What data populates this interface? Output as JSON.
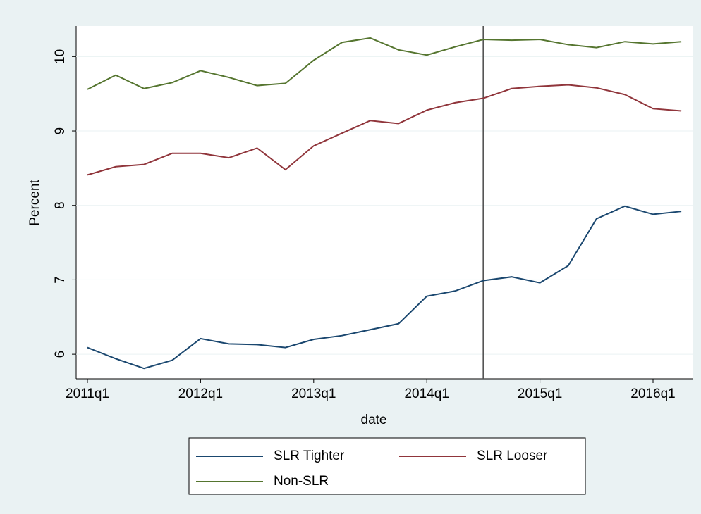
{
  "chart_data": {
    "type": "line",
    "x_label": "date",
    "y_label": "Percent",
    "categories": [
      "2011q1",
      null,
      null,
      null,
      "2012q1",
      null,
      null,
      null,
      "2013q1",
      null,
      null,
      null,
      "2014q1",
      null,
      null,
      null,
      "2015q1",
      null,
      null,
      null,
      "2016q1",
      null
    ],
    "series": [
      {
        "name": "SLR Tighter",
        "color": "#1a476f",
        "values": [
          6.09,
          5.94,
          5.81,
          5.92,
          6.21,
          6.14,
          6.13,
          6.09,
          6.2,
          6.25,
          6.33,
          6.41,
          6.78,
          6.85,
          6.99,
          7.04,
          6.96,
          7.19,
          7.82,
          7.99,
          7.88,
          7.92
        ]
      },
      {
        "name": "SLR Looser",
        "color": "#90353b",
        "values": [
          8.41,
          8.52,
          8.55,
          8.7,
          8.7,
          8.64,
          8.77,
          8.48,
          8.8,
          8.97,
          9.14,
          9.1,
          9.28,
          9.38,
          9.44,
          9.57,
          9.6,
          9.62,
          9.58,
          9.49,
          9.3,
          9.27
        ]
      },
      {
        "name": "Non-SLR",
        "color": "#55752f",
        "values": [
          9.56,
          9.75,
          9.57,
          9.65,
          9.81,
          9.72,
          9.61,
          9.64,
          9.95,
          10.19,
          10.25,
          10.09,
          10.02,
          10.13,
          10.23,
          10.22,
          10.23,
          10.16,
          10.12,
          10.2,
          10.17,
          10.2
        ]
      }
    ],
    "vline_category_index": 14,
    "ylim": [
      5.67,
      10.41
    ],
    "yticks": [
      6,
      7,
      8,
      9,
      10
    ],
    "grid": true
  }
}
